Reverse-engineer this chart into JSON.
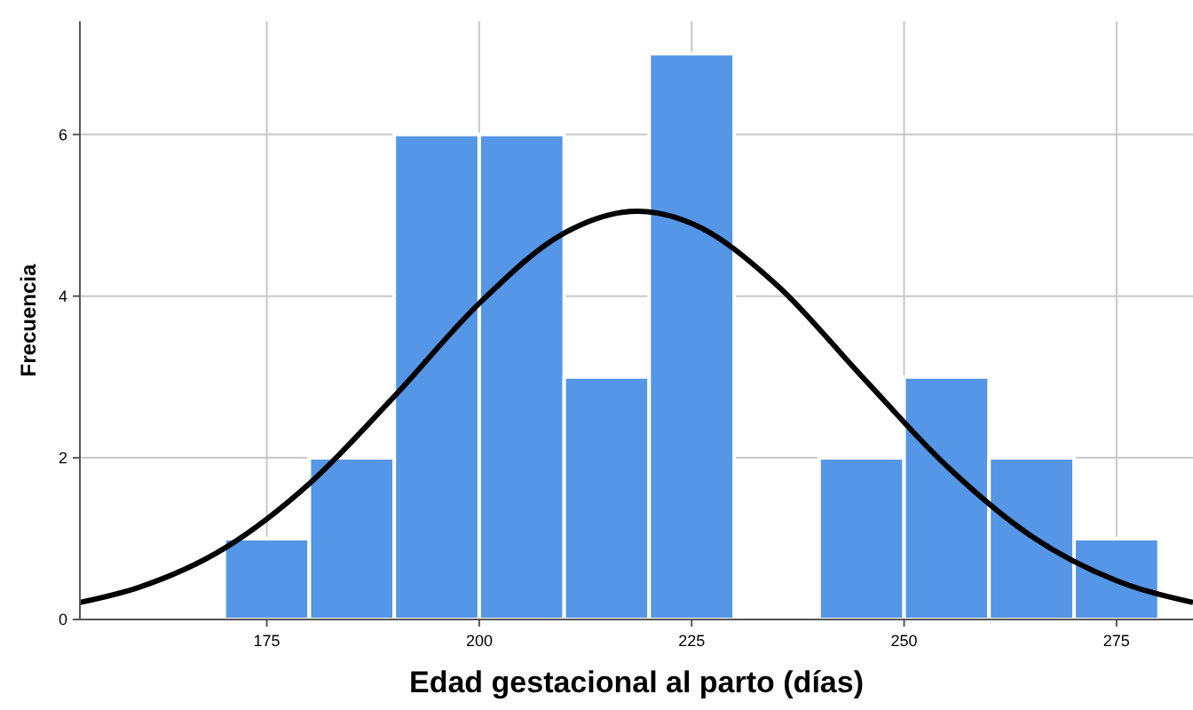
{
  "chart_data": {
    "type": "histogram",
    "xlabel": "Edad gestacional al parto (días)",
    "ylabel": "Frecuencia",
    "bins": [
      170,
      180,
      190,
      200,
      210,
      220,
      230,
      240,
      250,
      260,
      270,
      280
    ],
    "values": [
      1,
      2,
      6,
      6,
      3,
      7,
      0,
      2,
      3,
      2,
      1
    ],
    "color": "#5596e6",
    "series": [
      {
        "type": "line",
        "color": "#000000",
        "x": [
          153,
          160,
          170,
          180,
          190,
          200,
          210,
          218.6,
          225,
          235,
          245,
          255,
          265,
          275,
          284
        ],
        "values": [
          0.21,
          0.4,
          0.88,
          1.68,
          2.76,
          3.91,
          4.78,
          5.05,
          4.9,
          4.14,
          3.01,
          1.9,
          1.03,
          0.48,
          0.21
        ]
      }
    ],
    "xlim": [
      153,
      284
    ],
    "xticks": [
      175,
      200,
      225,
      250,
      275
    ],
    "ylim": [
      0,
      7.4
    ],
    "yticks": [
      0,
      2,
      4,
      6
    ],
    "grid": true
  }
}
